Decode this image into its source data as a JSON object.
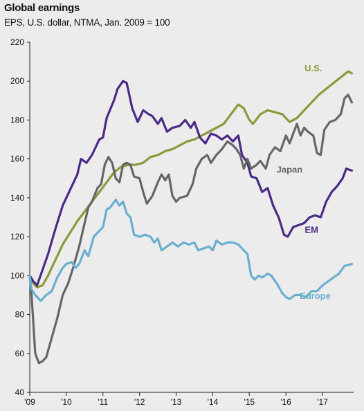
{
  "chart_data": {
    "type": "line",
    "title": "Global earnings",
    "subtitle": "EPS, U.S. dollar, NTMA, Jan. 2009 = 100",
    "xlabel": "",
    "ylabel": "",
    "xlim": [
      2009.0,
      2017.85
    ],
    "ylim": [
      40,
      220
    ],
    "yticks": [
      40,
      60,
      80,
      100,
      120,
      140,
      160,
      180,
      200,
      220
    ],
    "xticks": [
      {
        "value": 2009,
        "label": "'09"
      },
      {
        "value": 2010,
        "label": "'10"
      },
      {
        "value": 2011,
        "label": "'11"
      },
      {
        "value": 2012,
        "label": "'12"
      },
      {
        "value": 2013,
        "label": "'13"
      },
      {
        "value": 2014,
        "label": "'14"
      },
      {
        "value": 2015,
        "label": "'15"
      },
      {
        "value": 2016,
        "label": "'16"
      },
      {
        "value": 2017,
        "label": "'17"
      }
    ],
    "grid": false,
    "legend": "inline labels",
    "series": [
      {
        "name": "U.S.",
        "color": "#8a9a3a",
        "label_pos": [
          2016.75,
          205
        ],
        "points": [
          [
            2009.0,
            100
          ],
          [
            2009.1,
            96
          ],
          [
            2009.2,
            94
          ],
          [
            2009.35,
            95
          ],
          [
            2009.5,
            100
          ],
          [
            2009.7,
            108
          ],
          [
            2009.9,
            116
          ],
          [
            2010.1,
            122
          ],
          [
            2010.3,
            128
          ],
          [
            2010.5,
            133
          ],
          [
            2010.7,
            138
          ],
          [
            2010.9,
            143
          ],
          [
            2011.1,
            148
          ],
          [
            2011.3,
            153
          ],
          [
            2011.5,
            156
          ],
          [
            2011.7,
            157
          ],
          [
            2011.9,
            157
          ],
          [
            2012.1,
            158
          ],
          [
            2012.3,
            161
          ],
          [
            2012.5,
            162
          ],
          [
            2012.7,
            164
          ],
          [
            2012.9,
            165
          ],
          [
            2013.1,
            167
          ],
          [
            2013.3,
            169
          ],
          [
            2013.5,
            170
          ],
          [
            2013.7,
            172
          ],
          [
            2013.9,
            174
          ],
          [
            2014.1,
            176
          ],
          [
            2014.3,
            178
          ],
          [
            2014.5,
            183
          ],
          [
            2014.7,
            188
          ],
          [
            2014.85,
            186
          ],
          [
            2015.0,
            180
          ],
          [
            2015.1,
            178
          ],
          [
            2015.3,
            183
          ],
          [
            2015.5,
            185
          ],
          [
            2015.7,
            184
          ],
          [
            2015.9,
            183
          ],
          [
            2016.1,
            179
          ],
          [
            2016.3,
            181
          ],
          [
            2016.5,
            185
          ],
          [
            2016.7,
            189
          ],
          [
            2016.9,
            193
          ],
          [
            2017.1,
            196
          ],
          [
            2017.3,
            199
          ],
          [
            2017.5,
            202
          ],
          [
            2017.7,
            205
          ],
          [
            2017.8,
            204
          ]
        ]
      },
      {
        "name": "EM",
        "color": "#4b2a85",
        "label_pos": [
          2016.7,
          122
        ],
        "points": [
          [
            2009.0,
            100
          ],
          [
            2009.1,
            97
          ],
          [
            2009.2,
            95
          ],
          [
            2009.35,
            103
          ],
          [
            2009.5,
            111
          ],
          [
            2009.7,
            124
          ],
          [
            2009.9,
            136
          ],
          [
            2010.1,
            144
          ],
          [
            2010.3,
            152
          ],
          [
            2010.4,
            160
          ],
          [
            2010.55,
            158
          ],
          [
            2010.7,
            162
          ],
          [
            2010.9,
            170
          ],
          [
            2011.0,
            171
          ],
          [
            2011.1,
            181
          ],
          [
            2011.3,
            190
          ],
          [
            2011.4,
            196
          ],
          [
            2011.55,
            200
          ],
          [
            2011.65,
            199
          ],
          [
            2011.8,
            186
          ],
          [
            2011.95,
            179
          ],
          [
            2012.1,
            185
          ],
          [
            2012.25,
            183
          ],
          [
            2012.35,
            182
          ],
          [
            2012.5,
            178
          ],
          [
            2012.6,
            181
          ],
          [
            2012.75,
            174
          ],
          [
            2012.9,
            176
          ],
          [
            2013.1,
            177
          ],
          [
            2013.25,
            180
          ],
          [
            2013.4,
            176
          ],
          [
            2013.5,
            179
          ],
          [
            2013.65,
            171
          ],
          [
            2013.8,
            168
          ],
          [
            2013.95,
            173
          ],
          [
            2014.1,
            172
          ],
          [
            2014.25,
            170
          ],
          [
            2014.4,
            172
          ],
          [
            2014.55,
            169
          ],
          [
            2014.7,
            172
          ],
          [
            2014.8,
            162
          ],
          [
            2014.95,
            158
          ],
          [
            2015.05,
            151
          ],
          [
            2015.2,
            150
          ],
          [
            2015.35,
            143
          ],
          [
            2015.5,
            145
          ],
          [
            2015.65,
            136
          ],
          [
            2015.8,
            130
          ],
          [
            2015.95,
            121
          ],
          [
            2016.05,
            120
          ],
          [
            2016.2,
            125
          ],
          [
            2016.35,
            126
          ],
          [
            2016.5,
            127
          ],
          [
            2016.65,
            130
          ],
          [
            2016.8,
            131
          ],
          [
            2016.95,
            130
          ],
          [
            2017.1,
            138
          ],
          [
            2017.25,
            143
          ],
          [
            2017.4,
            146
          ],
          [
            2017.55,
            150
          ],
          [
            2017.65,
            155
          ],
          [
            2017.8,
            154
          ]
        ]
      },
      {
        "name": "Japan",
        "color": "#666666",
        "label_pos": [
          2016.1,
          153
        ],
        "points": [
          [
            2009.0,
            100
          ],
          [
            2009.05,
            90
          ],
          [
            2009.1,
            75
          ],
          [
            2009.15,
            60
          ],
          [
            2009.25,
            55
          ],
          [
            2009.35,
            56
          ],
          [
            2009.45,
            58
          ],
          [
            2009.6,
            68
          ],
          [
            2009.75,
            78
          ],
          [
            2009.9,
            90
          ],
          [
            2010.05,
            96
          ],
          [
            2010.2,
            105
          ],
          [
            2010.35,
            115
          ],
          [
            2010.5,
            127
          ],
          [
            2010.6,
            135
          ],
          [
            2010.7,
            138
          ],
          [
            2010.85,
            145
          ],
          [
            2010.95,
            147
          ],
          [
            2011.05,
            157
          ],
          [
            2011.15,
            161
          ],
          [
            2011.25,
            158
          ],
          [
            2011.35,
            150
          ],
          [
            2011.45,
            148
          ],
          [
            2011.55,
            157
          ],
          [
            2011.65,
            158
          ],
          [
            2011.75,
            157
          ],
          [
            2011.85,
            151
          ],
          [
            2012.0,
            150
          ],
          [
            2012.1,
            143
          ],
          [
            2012.2,
            137
          ],
          [
            2012.35,
            141
          ],
          [
            2012.5,
            148
          ],
          [
            2012.6,
            152
          ],
          [
            2012.7,
            149
          ],
          [
            2012.8,
            152
          ],
          [
            2012.9,
            141
          ],
          [
            2013.0,
            138
          ],
          [
            2013.1,
            140
          ],
          [
            2013.3,
            141
          ],
          [
            2013.45,
            147
          ],
          [
            2013.55,
            155
          ],
          [
            2013.7,
            160
          ],
          [
            2013.85,
            162
          ],
          [
            2013.95,
            158
          ],
          [
            2014.1,
            162
          ],
          [
            2014.25,
            165
          ],
          [
            2014.4,
            169
          ],
          [
            2014.55,
            167
          ],
          [
            2014.65,
            165
          ],
          [
            2014.75,
            162
          ],
          [
            2014.85,
            155
          ],
          [
            2014.95,
            160
          ],
          [
            2015.05,
            155
          ],
          [
            2015.2,
            157
          ],
          [
            2015.3,
            159
          ],
          [
            2015.45,
            155
          ],
          [
            2015.55,
            162
          ],
          [
            2015.7,
            166
          ],
          [
            2015.85,
            164
          ],
          [
            2016.0,
            172
          ],
          [
            2016.1,
            168
          ],
          [
            2016.2,
            173
          ],
          [
            2016.3,
            178
          ],
          [
            2016.4,
            172
          ],
          [
            2016.5,
            176
          ],
          [
            2016.6,
            174
          ],
          [
            2016.75,
            172
          ],
          [
            2016.85,
            163
          ],
          [
            2016.95,
            162
          ],
          [
            2017.05,
            175
          ],
          [
            2017.2,
            179
          ],
          [
            2017.35,
            180
          ],
          [
            2017.5,
            183
          ],
          [
            2017.6,
            191
          ],
          [
            2017.7,
            193
          ],
          [
            2017.8,
            189
          ]
        ]
      },
      {
        "name": "Europe",
        "color": "#6bafd0",
        "label_pos": [
          2016.8,
          88
        ],
        "points": [
          [
            2009.0,
            100
          ],
          [
            2009.05,
            93
          ],
          [
            2009.15,
            90
          ],
          [
            2009.3,
            87
          ],
          [
            2009.45,
            90
          ],
          [
            2009.6,
            92
          ],
          [
            2009.75,
            99
          ],
          [
            2009.9,
            104
          ],
          [
            2010.0,
            106
          ],
          [
            2010.15,
            107
          ],
          [
            2010.25,
            104
          ],
          [
            2010.35,
            106
          ],
          [
            2010.5,
            113
          ],
          [
            2010.6,
            110
          ],
          [
            2010.75,
            120
          ],
          [
            2010.9,
            123
          ],
          [
            2011.0,
            125
          ],
          [
            2011.1,
            134
          ],
          [
            2011.2,
            135
          ],
          [
            2011.35,
            139
          ],
          [
            2011.45,
            136
          ],
          [
            2011.55,
            138
          ],
          [
            2011.65,
            132
          ],
          [
            2011.75,
            130
          ],
          [
            2011.85,
            121
          ],
          [
            2012.0,
            120
          ],
          [
            2012.15,
            121
          ],
          [
            2012.3,
            120
          ],
          [
            2012.4,
            117
          ],
          [
            2012.5,
            119
          ],
          [
            2012.6,
            113
          ],
          [
            2012.75,
            115
          ],
          [
            2012.9,
            117
          ],
          [
            2013.05,
            115
          ],
          [
            2013.2,
            117
          ],
          [
            2013.35,
            116
          ],
          [
            2013.5,
            117
          ],
          [
            2013.6,
            113
          ],
          [
            2013.75,
            114
          ],
          [
            2013.9,
            115
          ],
          [
            2014.0,
            113
          ],
          [
            2014.1,
            118
          ],
          [
            2014.25,
            116
          ],
          [
            2014.4,
            117
          ],
          [
            2014.55,
            117
          ],
          [
            2014.7,
            116
          ],
          [
            2014.85,
            113
          ],
          [
            2014.95,
            111
          ],
          [
            2015.05,
            100
          ],
          [
            2015.15,
            98
          ],
          [
            2015.25,
            100
          ],
          [
            2015.35,
            99
          ],
          [
            2015.5,
            101
          ],
          [
            2015.6,
            100
          ],
          [
            2015.75,
            96
          ],
          [
            2015.9,
            91
          ],
          [
            2016.0,
            89
          ],
          [
            2016.1,
            88
          ],
          [
            2016.25,
            90
          ],
          [
            2016.4,
            90
          ],
          [
            2016.55,
            89
          ],
          [
            2016.7,
            92
          ],
          [
            2016.85,
            92
          ],
          [
            2017.0,
            95
          ],
          [
            2017.15,
            97
          ],
          [
            2017.3,
            99
          ],
          [
            2017.45,
            101
          ],
          [
            2017.6,
            105
          ],
          [
            2017.8,
            106
          ]
        ]
      }
    ]
  }
}
